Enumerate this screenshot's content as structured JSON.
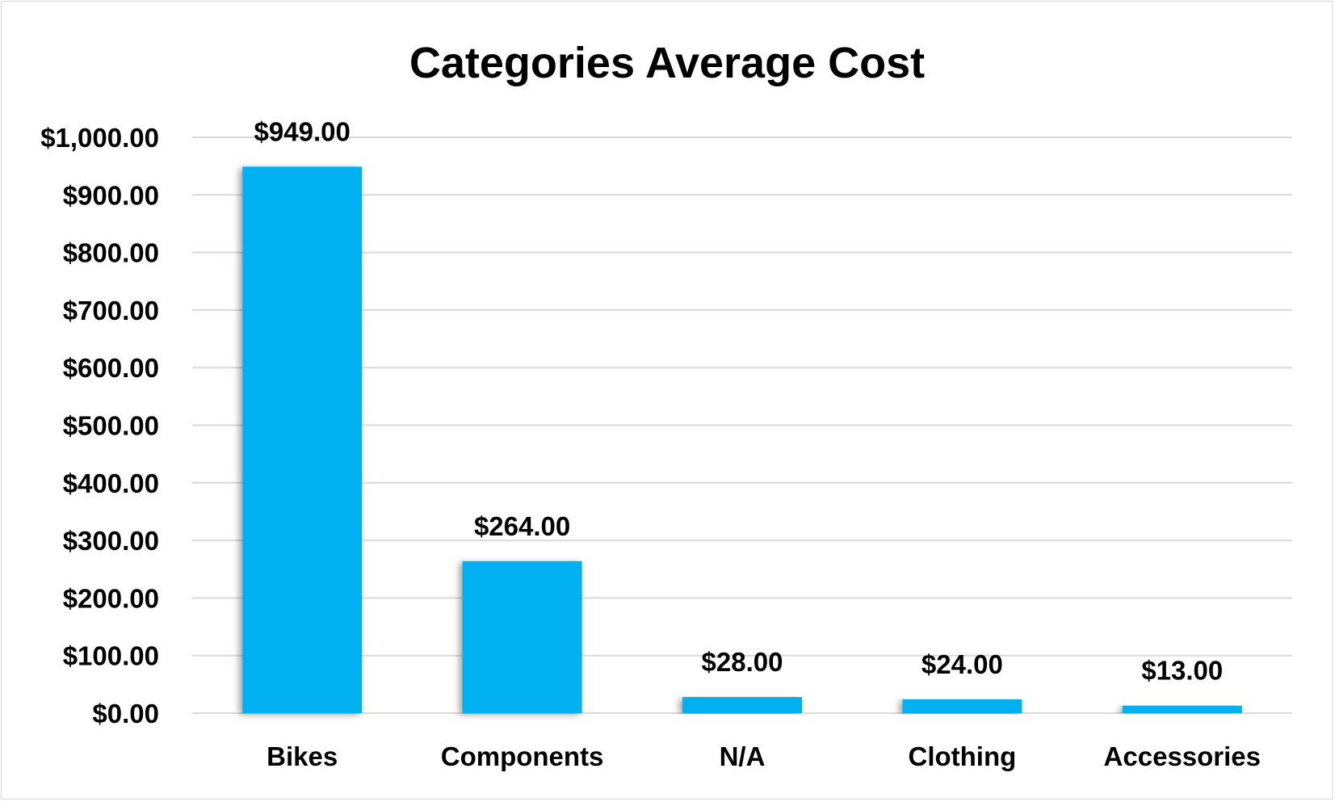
{
  "chart_data": {
    "type": "bar",
    "title": "Categories Average Cost",
    "categories": [
      "Bikes",
      "Components",
      "N/A",
      "Clothing",
      "Accessories"
    ],
    "values": [
      949,
      264,
      28,
      24,
      13
    ],
    "data_labels": [
      "$949.00",
      "$264.00",
      "$28.00",
      "$24.00",
      "$13.00"
    ],
    "y_ticks": [
      0,
      100,
      200,
      300,
      400,
      500,
      600,
      700,
      800,
      900,
      1000
    ],
    "y_tick_labels": [
      "$0.00",
      "$100.00",
      "$200.00",
      "$300.00",
      "$400.00",
      "$500.00",
      "$600.00",
      "$700.00",
      "$800.00",
      "$900.00",
      "$1,000.00"
    ],
    "ylim": [
      0,
      1000
    ],
    "xlabel": "",
    "ylabel": "",
    "grid": true,
    "legend": "none",
    "bar_color": "#00B0F0"
  }
}
